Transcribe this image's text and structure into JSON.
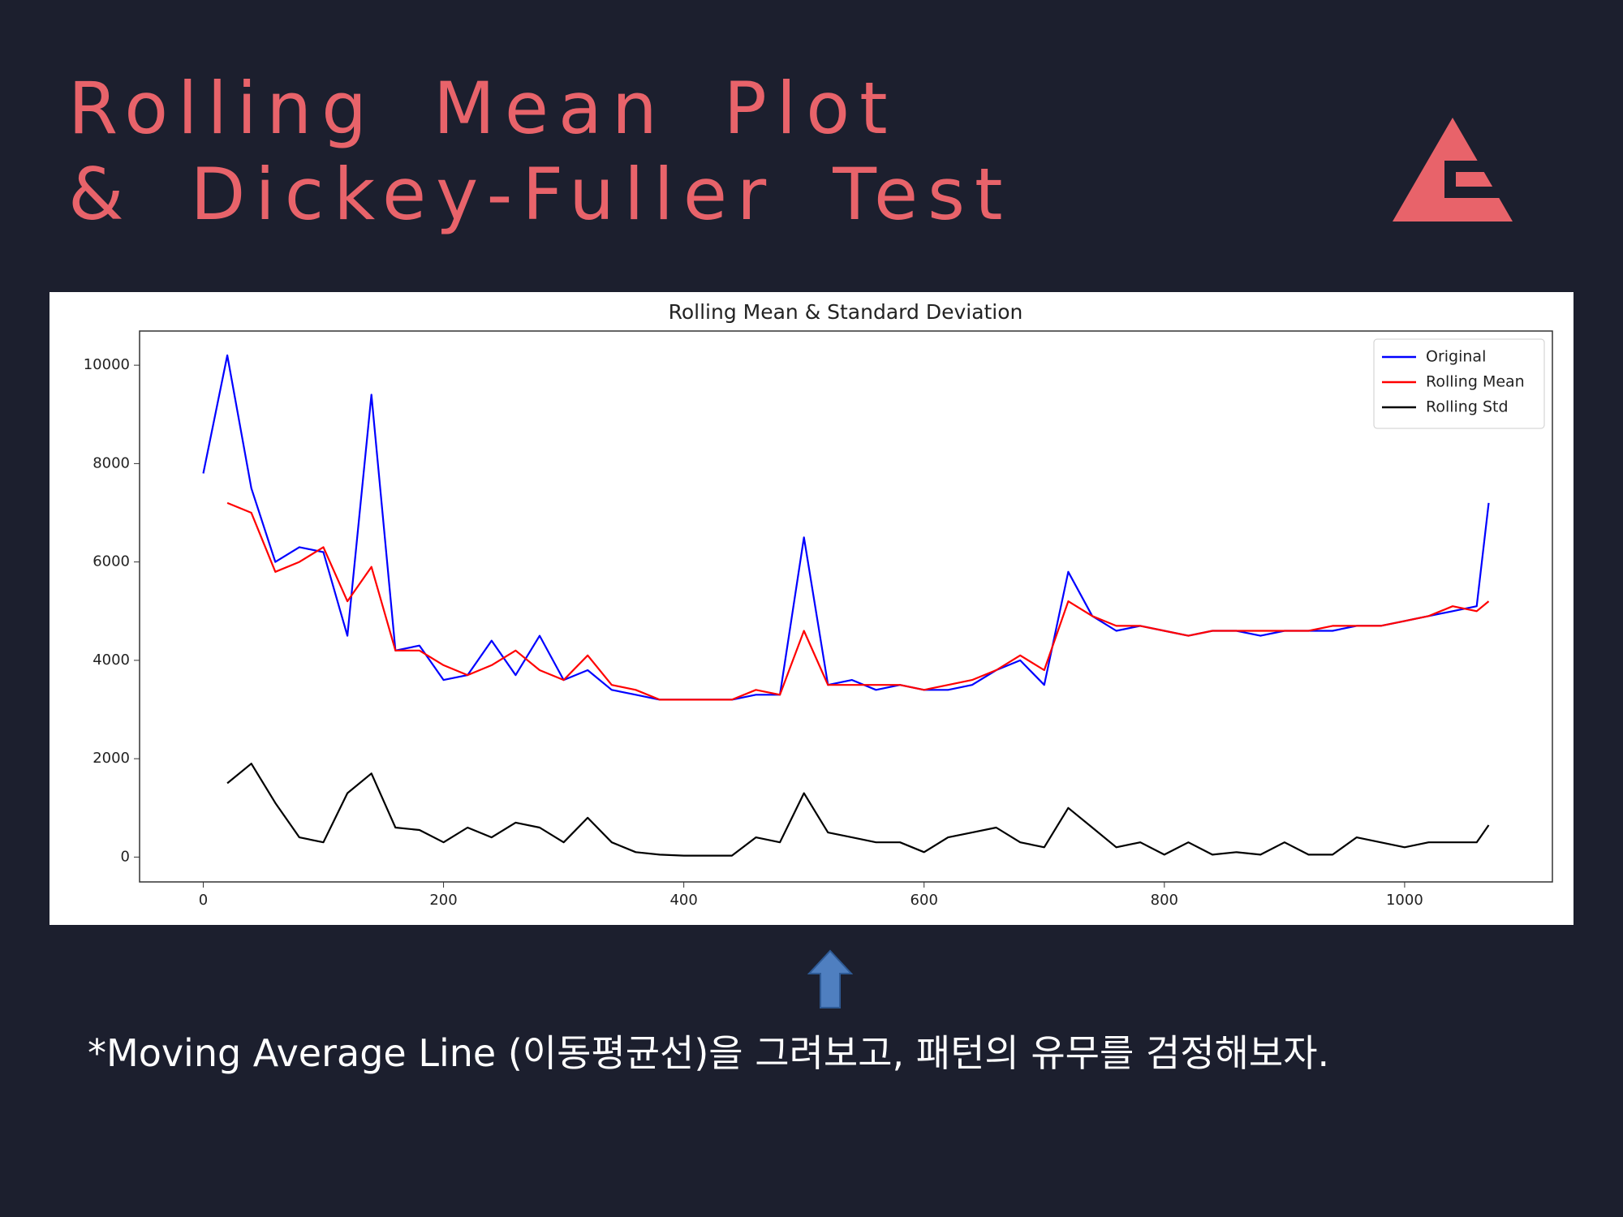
{
  "slide": {
    "title_lines": [
      "Rolling Mean Plot",
      "& Dickey-Fuller Test"
    ],
    "caption": "*Moving Average Line (이동평균선)을 그려보고, 패턴의 유무를 검정해보자."
  },
  "chart_data": {
    "type": "line",
    "title": "Rolling Mean & Standard Deviation",
    "x": [
      0,
      20,
      40,
      60,
      80,
      100,
      120,
      140,
      160,
      180,
      200,
      220,
      240,
      260,
      280,
      300,
      320,
      340,
      360,
      380,
      400,
      420,
      440,
      460,
      480,
      500,
      520,
      540,
      560,
      580,
      600,
      620,
      640,
      660,
      680,
      700,
      720,
      740,
      760,
      780,
      800,
      820,
      840,
      860,
      880,
      900,
      920,
      940,
      960,
      980,
      1000,
      1020,
      1040,
      1060,
      1070
    ],
    "series": [
      {
        "name": "Original",
        "color": "#0000ff",
        "values": [
          7800,
          10200,
          7500,
          6000,
          6300,
          6200,
          4500,
          9400,
          4200,
          4300,
          3600,
          3700,
          4400,
          3700,
          4500,
          3600,
          3800,
          3400,
          3300,
          3200,
          3200,
          3200,
          3200,
          3300,
          3300,
          6500,
          3500,
          3600,
          3400,
          3500,
          3400,
          3400,
          3500,
          3800,
          4000,
          3500,
          5800,
          4900,
          4600,
          4700,
          4600,
          4500,
          4600,
          4600,
          4500,
          4600,
          4600,
          4600,
          4700,
          4700,
          4800,
          4900,
          5000,
          5100,
          7200
        ]
      },
      {
        "name": "Rolling Mean",
        "color": "#ff0000",
        "values": [
          null,
          7200,
          7000,
          5800,
          6000,
          6300,
          5200,
          5900,
          4200,
          4200,
          3900,
          3700,
          3900,
          4200,
          3800,
          3600,
          4100,
          3500,
          3400,
          3200,
          3200,
          3200,
          3200,
          3400,
          3300,
          4600,
          3500,
          3500,
          3500,
          3500,
          3400,
          3500,
          3600,
          3800,
          4100,
          3800,
          5200,
          4900,
          4700,
          4700,
          4600,
          4500,
          4600,
          4600,
          4600,
          4600,
          4600,
          4700,
          4700,
          4700,
          4800,
          4900,
          5100,
          5000,
          5200
        ]
      },
      {
        "name": "Rolling Std",
        "color": "#000000",
        "values": [
          null,
          1500,
          1900,
          1100,
          400,
          300,
          1300,
          1700,
          600,
          550,
          300,
          600,
          400,
          700,
          600,
          300,
          800,
          300,
          100,
          50,
          30,
          30,
          30,
          400,
          300,
          1300,
          500,
          400,
          300,
          300,
          100,
          400,
          500,
          600,
          300,
          200,
          1000,
          600,
          200,
          300,
          50,
          300,
          50,
          100,
          50,
          300,
          50,
          50,
          400,
          300,
          200,
          300,
          300,
          300,
          650
        ]
      }
    ],
    "xlim": [
      -53,
      1123
    ],
    "ylim": [
      -505,
      10695
    ],
    "xticks": [
      0,
      200,
      400,
      600,
      800,
      1000
    ],
    "yticks": [
      0,
      2000,
      4000,
      6000,
      8000,
      10000
    ],
    "legend": "upper right"
  }
}
